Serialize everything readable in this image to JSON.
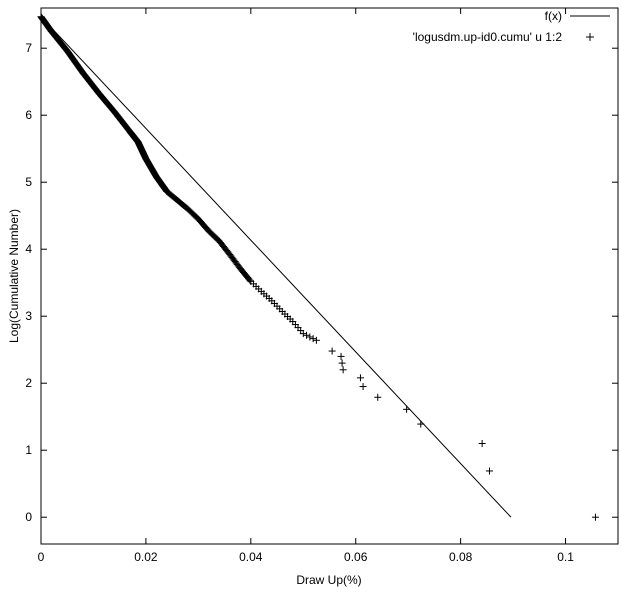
{
  "chart_data": {
    "type": "line",
    "title": "",
    "xlabel": "Draw Up(%)",
    "ylabel": "Log(Cumulative Number)",
    "xlim": [
      0,
      0.11
    ],
    "ylim": [
      -0.4,
      7.6
    ],
    "xticks": [
      0,
      0.02,
      0.04,
      0.06,
      0.08,
      0.1
    ],
    "xtick_labels": [
      "0",
      "0.02",
      "0.04",
      "0.06",
      "0.08",
      "0.1"
    ],
    "yticks": [
      0,
      1,
      2,
      3,
      4,
      5,
      6,
      7
    ],
    "ytick_labels": [
      "0",
      "1",
      "2",
      "3",
      "4",
      "5",
      "6",
      "7"
    ],
    "grid": false,
    "legend_position": "top-right",
    "series": [
      {
        "name": "f(x)",
        "style": "line",
        "color": "#000000",
        "x": [
          0,
          0.0896
        ],
        "y": [
          7.47,
          0
        ]
      },
      {
        "name": "'logusdm.up-id0.cumu' u 1:2",
        "style": "points",
        "marker": "plus",
        "color": "#000000",
        "x": [
          0.0525,
          0.0555,
          0.0572,
          0.0574,
          0.0576,
          0.0609,
          0.0614,
          0.0642,
          0.0697,
          0.0724,
          0.0841,
          0.0855,
          0.1057
        ],
        "y": [
          2.64,
          2.48,
          2.4,
          2.3,
          2.2,
          2.08,
          1.95,
          1.79,
          1.61,
          1.39,
          1.1,
          0.69,
          0.0
        ]
      }
    ]
  }
}
